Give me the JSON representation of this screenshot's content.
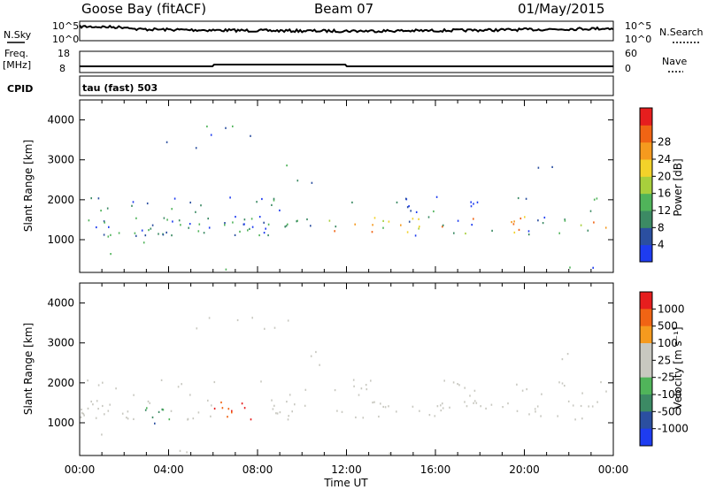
{
  "header": {
    "station": "Goose Bay (fitACF)",
    "beam": "Beam 07",
    "date": "01/May/2015"
  },
  "summary": {
    "nsky_label": "N.Sky",
    "nsky_ticks": [
      "10^5",
      "10^0"
    ],
    "nsearch_label": "N.Search",
    "nsearch_ticks": [
      "10^5",
      "10^0"
    ],
    "freq_label_1": "Freq.",
    "freq_label_2": "[MHz]",
    "freq_ticks": [
      "18",
      "8"
    ],
    "nave_label": "Nave",
    "nave_ticks": [
      "60",
      "0"
    ],
    "cpid_label": "CPID",
    "cpid_value": "tau (fast) 503"
  },
  "colors": {
    "power": [
      "#1e3cf0",
      "#2b4fa0",
      "#3c8a64",
      "#50b45a",
      "#a8cf3c",
      "#f2d22a",
      "#f59a1e",
      "#f06414",
      "#e61e1e"
    ],
    "velocity": [
      "#e61e1e",
      "#f06414",
      "#f59a1e",
      "#c8c8c0",
      "#c8c8c0",
      "#50b45a",
      "#3c8a64",
      "#2b4fa0",
      "#1e3cf0"
    ]
  },
  "chart_data": [
    {
      "type": "heatmap",
      "quantity": "power",
      "ylabel": "Slant Range [km]",
      "y_ticks": [
        1000,
        2000,
        3000,
        4000
      ],
      "ylim": [
        180,
        4500
      ],
      "xlim": [
        0,
        24
      ],
      "colorbar_label": "Power [dB]",
      "colorbar_ticks": [
        "4",
        "8",
        "12",
        "16",
        "20",
        "24",
        "28"
      ]
    },
    {
      "type": "heatmap",
      "quantity": "velocity",
      "xlabel": "Time UT",
      "ylabel": "Slant Range [km]",
      "x_ticks": [
        "00:00",
        "04:00",
        "08:00",
        "12:00",
        "16:00",
        "20:00",
        "00:00"
      ],
      "y_ticks": [
        1000,
        2000,
        3000,
        4000
      ],
      "ylim": [
        180,
        4500
      ],
      "xlim": [
        0,
        24
      ],
      "colorbar_label": "Velocity [m s⁻¹]",
      "colorbar_ticks": [
        "1000",
        "500",
        "100",
        "25",
        "-25",
        "-100",
        "-500",
        "-1000"
      ]
    }
  ]
}
